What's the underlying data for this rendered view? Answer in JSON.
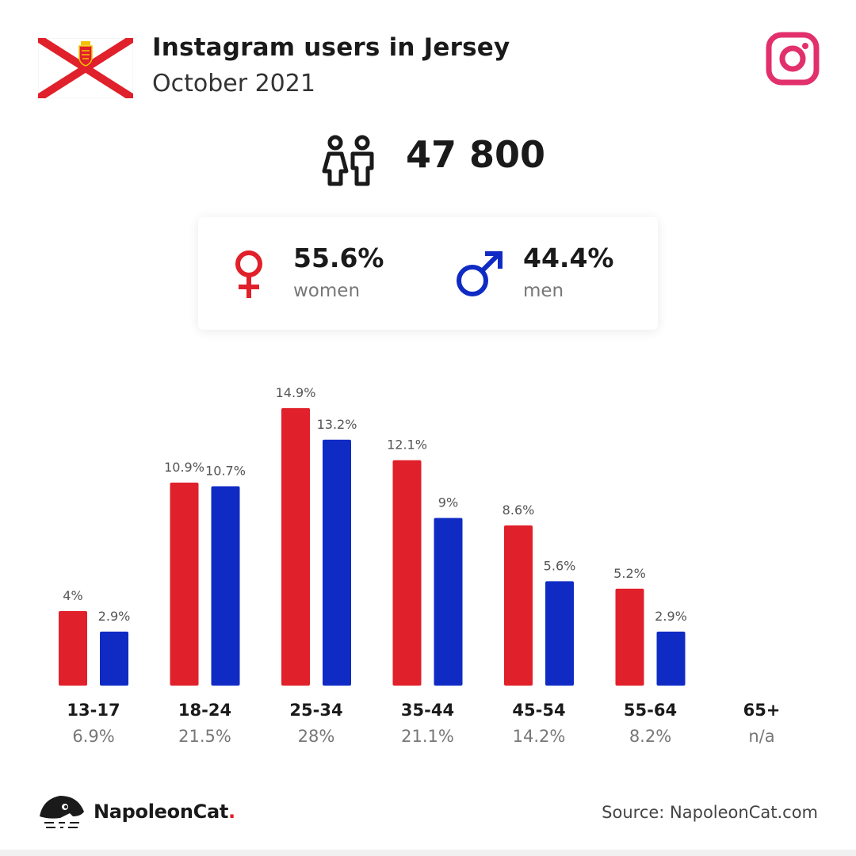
{
  "header": {
    "title": "Instagram users in Jersey",
    "subtitle": "October 2021"
  },
  "total": {
    "value": "47 800",
    "icon": "people-icon"
  },
  "gender": {
    "women": {
      "pct": "55.6%",
      "label": "women",
      "color": "#e0202a",
      "icon": "female-symbol-icon"
    },
    "men": {
      "pct": "44.4%",
      "label": "men",
      "color": "#0f2bc4",
      "icon": "male-symbol-icon"
    }
  },
  "chart_data": {
    "type": "bar",
    "categories": [
      "13-17",
      "18-24",
      "25-34",
      "35-44",
      "45-54",
      "55-64",
      "65+"
    ],
    "category_totals": [
      "6.9%",
      "21.5%",
      "28%",
      "21.1%",
      "14.2%",
      "8.2%",
      "n/a"
    ],
    "series": [
      {
        "values": [
          4,
          10.9,
          14.9,
          12.1,
          8.6,
          5.2,
          null
        ],
        "labels": [
          "4%",
          "10.9%",
          "14.9%",
          "12.1%",
          "8.6%",
          "5.2%",
          ""
        ],
        "color": "#e0202a"
      },
      {
        "values": [
          2.9,
          10.7,
          13.2,
          9,
          5.6,
          2.9,
          null
        ],
        "labels": [
          "2.9%",
          "10.7%",
          "13.2%",
          "9%",
          "5.6%",
          "2.9%",
          ""
        ],
        "color": "#0f2bc4"
      }
    ],
    "ylim": [
      0,
      16
    ],
    "grid": false
  },
  "footer": {
    "brand": "NapoleonCat",
    "brand_dot": ".",
    "source": "Source: NapoleonCat.com"
  },
  "icons": {
    "flag": "jersey-flag-icon",
    "instagram": "instagram-icon",
    "brand": "napoleoncat-logo-icon"
  }
}
